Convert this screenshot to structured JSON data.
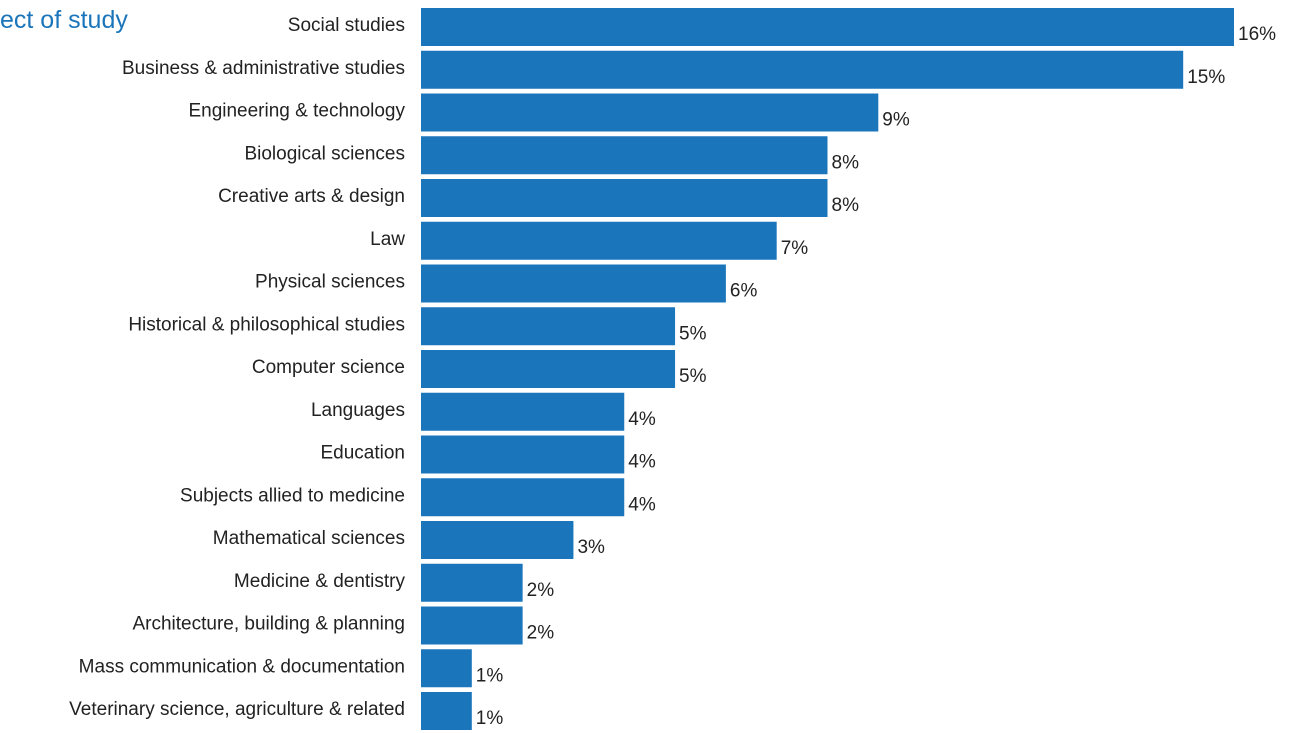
{
  "title": "ect of study",
  "colors": {
    "bar": "#1B75BB",
    "text": "#222222",
    "title": "#1B75BB"
  },
  "chart_data": {
    "type": "bar",
    "orientation": "horizontal",
    "title": "ect of study",
    "xlabel": "",
    "ylabel": "",
    "categories": [
      "Social studies",
      "Business & administrative studies",
      "Engineering & technology",
      "Biological sciences",
      "Creative arts & design",
      "Law",
      "Physical sciences",
      "Historical & philosophical studies",
      "Computer science",
      "Languages",
      "Education",
      "Subjects allied to medicine",
      "Mathematical sciences",
      "Medicine & dentistry",
      "Architecture, building & planning",
      "Mass communication & documentation",
      "Veterinary science, agriculture & related"
    ],
    "values": [
      16,
      15,
      9,
      8,
      8,
      7,
      6,
      5,
      5,
      4,
      4,
      4,
      3,
      2,
      2,
      1,
      1
    ],
    "data_labels": [
      "16%",
      "15%",
      "9%",
      "8%",
      "8%",
      "7%",
      "6%",
      "5%",
      "5%",
      "4%",
      "4%",
      "4%",
      "3%",
      "2%",
      "2%",
      "1%",
      "1%"
    ],
    "value_unit": "%",
    "xlim": [
      0,
      16
    ],
    "grid": false,
    "legend": "none"
  }
}
